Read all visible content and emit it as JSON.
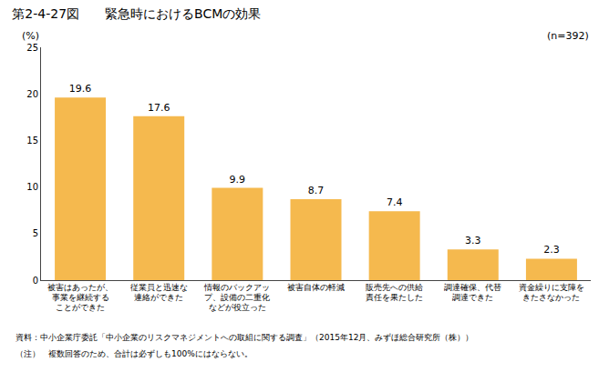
{
  "chart_data": {
    "type": "bar",
    "title": "第2-4-27図　　緊急時におけるBCMの効果",
    "ylabel": "(%)",
    "categories": [
      "被害はあったが、\n事業を継続する\nことができた",
      "従業員と迅速な\n連絡ができた",
      "情報のバックアッ\nプ、設備の二重化\nなどが役立った",
      "被害自体の軽減",
      "販売先への供給\n責任を果たした",
      "調達確保、代替\n調達できた",
      "資金繰りに支障を\nきたさなかった"
    ],
    "values": [
      19.6,
      17.6,
      9.9,
      8.7,
      7.4,
      3.3,
      2.3
    ],
    "color": "#F5B94E",
    "ylim": [
      0,
      25
    ],
    "yticks": [
      0,
      5,
      10,
      15,
      20,
      25
    ],
    "grid": false,
    "data_labels": true,
    "annotations": [
      "(n=392)",
      "資料：中小企業庁委託「中小企業のリスクマネジメントへの取組に関する調査」（2015年12月、みずほ総合研究所（株））",
      "（注）　複数回答のため、合計は必ずしも100%にはならない。"
    ]
  }
}
